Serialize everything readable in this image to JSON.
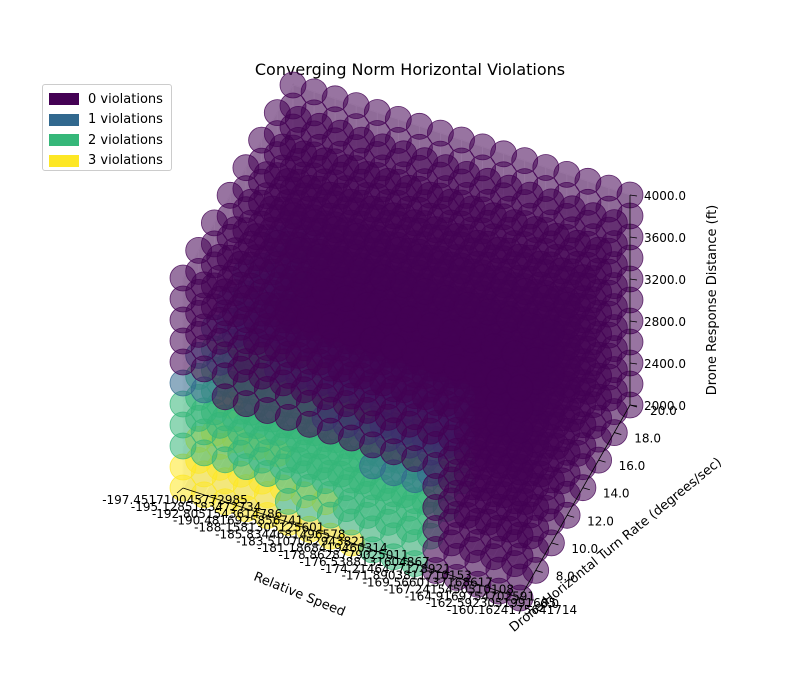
{
  "chart_data": {
    "type": "scatter3d",
    "title": "Converging Norm Horizontal Violations",
    "xlabel": "Relative Speed",
    "ylabel": "Drone Horizontal Turn Rate (degrees/sec)",
    "zlabel": "Drone Response Distance (ft)",
    "x_range": [
      -197.451710045773,
      -160.162417564171
    ],
    "x_ticks": [
      "-197.451710045772985",
      "-195.1285183472734",
      "-192.8051543614786",
      "-190.4816925856741",
      "-188.1581305125601",
      "-185.8344681496578",
      "-183.5107052943821",
      "-181.1868419460314",
      "-178.8628779025011",
      "-176.5388131604867",
      "-174.2146477178921",
      "-171.8903811710153",
      "-169.5660137168617",
      "-167.2415450510108",
      "-164.9169754702591",
      "-162.5923051991685",
      "-160.1624175641714"
    ],
    "y_range": [
      6.0,
      20.0
    ],
    "y_ticks": [
      "6.0",
      "8.0",
      "10.0",
      "12.0",
      "14.0",
      "16.0",
      "18.0",
      "20.0"
    ],
    "z_range": [
      2000.0,
      4000.0
    ],
    "z_ticks": [
      "2000.0",
      "2400.0",
      "2800.0",
      "3200.0",
      "3600.0",
      "4000.0"
    ],
    "legend_placement": "upper-left",
    "legend": [
      {
        "label": "0 violations",
        "color": "#440154"
      },
      {
        "label": "1 violations",
        "color": "#31688e"
      },
      {
        "label": "2 violations",
        "color": "#35b779"
      },
      {
        "label": "3 violations",
        "color": "#fde725"
      }
    ],
    "grid_note": "Dense grid: 17 relative speeds x 8 turn rates x 11 response distances; most points 0 violations, low distances / low speeds show 1-3 violations"
  }
}
